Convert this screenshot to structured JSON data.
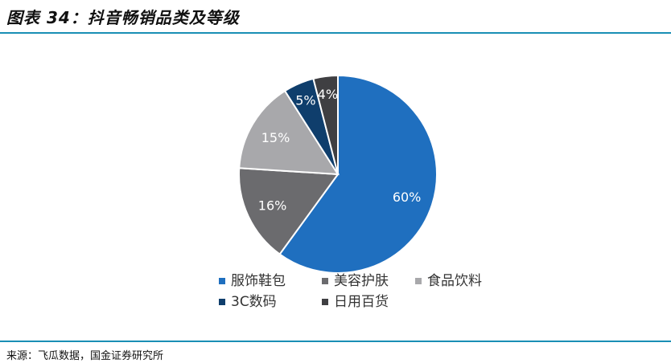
{
  "header": {
    "title": "图表 34：抖音畅销品类及等级"
  },
  "footer": {
    "source": "来源：飞瓜数据，国金证券研究所"
  },
  "colors": {
    "rule": "#1a8fb5"
  },
  "chart_data": {
    "type": "pie",
    "title": "",
    "categories": [
      "服饰鞋包",
      "美容护肤",
      "食品饮料",
      "3C数码",
      "日用百货"
    ],
    "values": [
      60,
      16,
      15,
      5,
      4
    ],
    "labels": [
      "60%",
      "16%",
      "15%",
      "5%",
      "4%"
    ],
    "colors": [
      "#1f6fbf",
      "#6b6b6e",
      "#a8a8ab",
      "#0f3e6c",
      "#3f3f42"
    ],
    "label_colors": [
      "#ffffff",
      "#ffffff",
      "#ffffff",
      "#ffffff",
      "#ffffff"
    ],
    "start_angle": "12 o'clock",
    "direction": "clockwise",
    "legend": {
      "position": "bottom"
    }
  }
}
